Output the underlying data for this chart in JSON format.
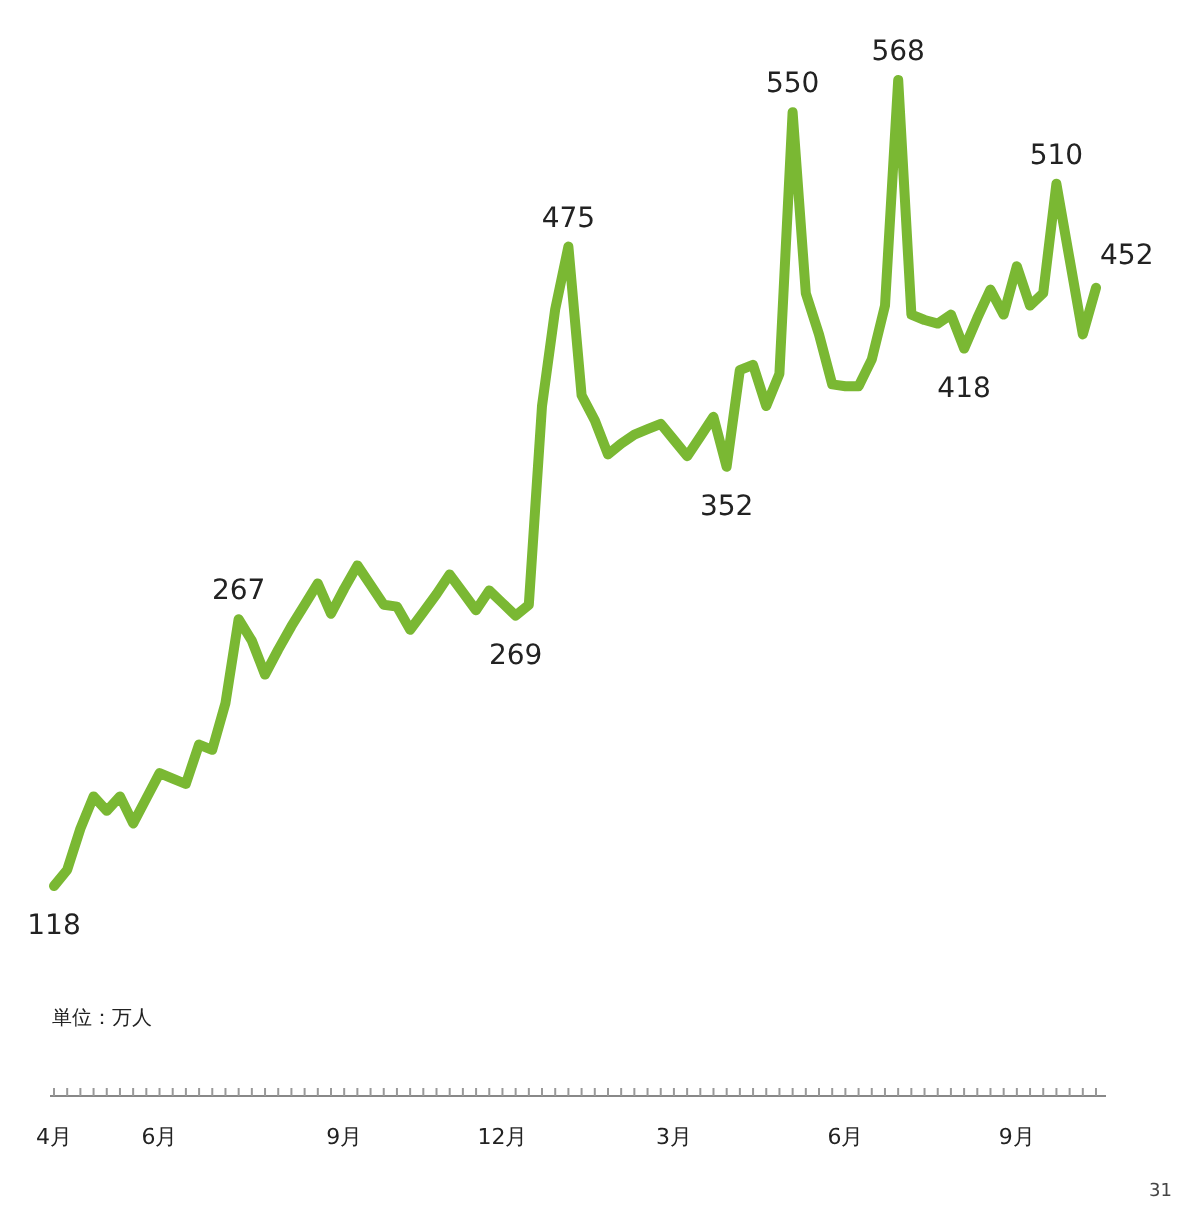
{
  "chart_data": {
    "type": "line",
    "annotations": [
      "単位：万人",
      "31"
    ],
    "categories": [
      "4月",
      null,
      null,
      null,
      null,
      null,
      null,
      null,
      "6月",
      null,
      null,
      null,
      null,
      null,
      null,
      null,
      null,
      null,
      null,
      null,
      null,
      null,
      "9月",
      null,
      null,
      null,
      null,
      null,
      null,
      null,
      null,
      null,
      null,
      null,
      "12月",
      null,
      null,
      null,
      null,
      null,
      null,
      null,
      null,
      null,
      null,
      null,
      null,
      "3月",
      null,
      null,
      null,
      null,
      null,
      null,
      null,
      null,
      null,
      null,
      null,
      null,
      "6月",
      null,
      null,
      null,
      null,
      null,
      null,
      null,
      null,
      null,
      null,
      null,
      null,
      "9月",
      null,
      null,
      null,
      null,
      null,
      null
    ],
    "series": [
      {
        "color": "#7ab833",
        "values": [
          118,
          127,
          150,
          168,
          160,
          168,
          153,
          167,
          181,
          178,
          175,
          197,
          194,
          220,
          267,
          255,
          236,
          250,
          263,
          275,
          287,
          270,
          284,
          297,
          286,
          275,
          274,
          261,
          271,
          281,
          292,
          282,
          272,
          283,
          276,
          269,
          275,
          386,
          440,
          475,
          392,
          378,
          359,
          365,
          370,
          373,
          376,
          367,
          358,
          369,
          380,
          352,
          406,
          409,
          386,
          404,
          550,
          449,
          426,
          398,
          397,
          397,
          412,
          442,
          568,
          437,
          434,
          432,
          437,
          418,
          435,
          451,
          437,
          464,
          442,
          449,
          510,
          468,
          426,
          452
        ],
        "value_labels": [
          "118",
          null,
          null,
          null,
          null,
          null,
          null,
          null,
          null,
          null,
          null,
          null,
          null,
          null,
          "267",
          null,
          null,
          null,
          null,
          null,
          null,
          null,
          null,
          null,
          null,
          null,
          null,
          null,
          null,
          null,
          null,
          null,
          null,
          null,
          null,
          "269",
          null,
          null,
          null,
          "475",
          null,
          null,
          null,
          null,
          null,
          null,
          null,
          null,
          null,
          null,
          null,
          "352",
          null,
          null,
          null,
          null,
          "550",
          null,
          null,
          null,
          null,
          null,
          null,
          null,
          "568",
          null,
          null,
          null,
          null,
          "418",
          null,
          null,
          null,
          null,
          null,
          null,
          "510",
          null,
          null,
          "452"
        ]
      }
    ],
    "marker": "none",
    "line_style": "solid",
    "grid": false
  }
}
